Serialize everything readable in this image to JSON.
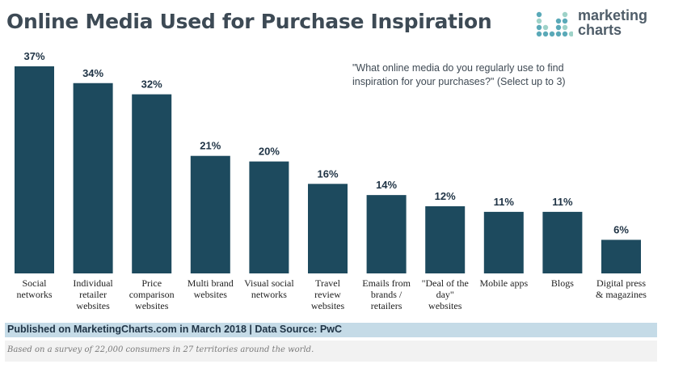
{
  "title": "Online Media Used for Purchase Inspiration",
  "logo": {
    "line1": "marketing",
    "line2": "charts"
  },
  "question": "\"What online media do you regularly use to find inspiration for your purchases?\" (Select up to 3)",
  "footer": {
    "source": "Published on MarketingCharts.com in March 2018 | Data Source: PwC",
    "note": "Based on a survey of 22,000 consumers in 27 territories around the world."
  },
  "colors": {
    "bar": "#1d4a5e",
    "title": "#3d4a55",
    "footer_band": "#c5dbe7"
  },
  "chart_data": {
    "type": "bar",
    "unit": "%",
    "ylim": [
      0,
      37
    ],
    "grid": false,
    "categories": [
      [
        "Social",
        "networks"
      ],
      [
        "Individual",
        "retailer",
        "websites"
      ],
      [
        "Price",
        "comparison",
        "websites"
      ],
      [
        "Multi brand",
        "websites"
      ],
      [
        "Visual social",
        "networks"
      ],
      [
        "Travel",
        "review",
        "websites"
      ],
      [
        "Emails from",
        "brands /",
        "retailers"
      ],
      [
        "\"Deal of the",
        "day\"",
        "websites"
      ],
      [
        "Mobile apps"
      ],
      [
        "Blogs"
      ],
      [
        "Digital press",
        "& magazines"
      ]
    ],
    "values": [
      37,
      34,
      32,
      21,
      20,
      16,
      14,
      12,
      11,
      11,
      6
    ],
    "data_labels": [
      "37%",
      "34%",
      "32%",
      "21%",
      "20%",
      "16%",
      "14%",
      "12%",
      "11%",
      "11%",
      "6%"
    ]
  }
}
